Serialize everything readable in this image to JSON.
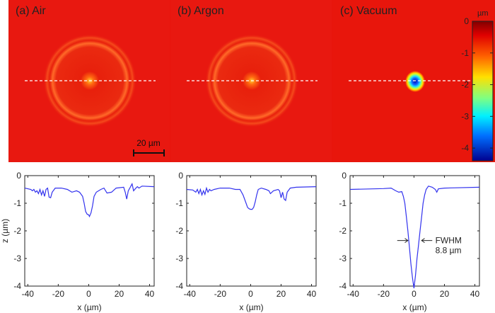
{
  "panels": [
    {
      "label": "(a) Air",
      "scale_bar": "20 µm"
    },
    {
      "label": "(b) Argon"
    },
    {
      "label": "(c) Vacuum"
    }
  ],
  "colorbar": {
    "unit": "µm",
    "ticks": [
      "0",
      "-1",
      "-2",
      "-3",
      "-4"
    ],
    "range": [
      -4.4,
      0
    ],
    "colormap": "jet"
  },
  "colors": {
    "background": "#e8140c",
    "line": "#3333ee",
    "dash": "#ffffff"
  },
  "chart_data": [
    {
      "type": "line",
      "xlabel": "x (µm)",
      "ylabel": "z (µm)",
      "xlim": [
        -42,
        43
      ],
      "ylim": [
        -4,
        0
      ],
      "xticks": [
        "-40",
        "-20",
        "0",
        "20",
        "40"
      ],
      "yticks": [
        "0",
        "-1",
        "-2",
        "-3",
        "-4"
      ],
      "x": [
        -42,
        -38,
        -37,
        -36,
        -35,
        -34,
        -33,
        -32,
        -31,
        -30,
        -29,
        -28,
        -27,
        -26,
        -25,
        -24,
        -22,
        -18,
        -14,
        -11,
        -8,
        -6,
        -4,
        -3,
        -2,
        -1,
        0,
        0.5,
        1.5,
        2.5,
        3.5,
        5,
        8,
        10,
        12,
        15,
        18,
        23,
        24,
        25,
        26,
        27,
        28,
        28.5,
        29.5,
        31,
        32,
        33,
        35,
        43
      ],
      "y": [
        -0.45,
        -0.5,
        -0.55,
        -0.5,
        -0.6,
        -0.55,
        -0.65,
        -0.5,
        -0.7,
        -0.55,
        -0.75,
        -0.5,
        -0.45,
        -0.78,
        -0.8,
        -0.6,
        -0.45,
        -0.45,
        -0.5,
        -0.6,
        -0.55,
        -0.6,
        -0.75,
        -1.0,
        -1.3,
        -1.4,
        -1.42,
        -1.48,
        -1.35,
        -1.1,
        -0.75,
        -0.6,
        -0.5,
        -0.45,
        -0.63,
        -0.6,
        -0.45,
        -0.42,
        -0.6,
        -0.85,
        -0.55,
        -0.45,
        -0.35,
        -0.3,
        -0.55,
        -0.45,
        -0.4,
        -0.45,
        -0.38,
        -0.4
      ]
    },
    {
      "type": "line",
      "xlabel": "x (µm)",
      "xlim": [
        -42,
        43
      ],
      "ylim": [
        -4,
        0
      ],
      "xticks": [
        "-40",
        "-20",
        "0",
        "20",
        "40"
      ],
      "yticks": [
        "0",
        "-1",
        "-2",
        "-3",
        "-4"
      ],
      "x": [
        -42,
        -38,
        -36,
        -35,
        -34,
        -33,
        -32,
        -31,
        -30,
        -29,
        -28,
        -27,
        -26,
        -24,
        -20,
        -14,
        -10,
        -7,
        -5,
        -3,
        -2,
        -1,
        0,
        1,
        2,
        3,
        4,
        5,
        7,
        10,
        12,
        13,
        15,
        18,
        19,
        20,
        21,
        22,
        23,
        24,
        26,
        30,
        43
      ],
      "y": [
        -0.5,
        -0.52,
        -0.6,
        -0.5,
        -0.65,
        -0.5,
        -0.7,
        -0.55,
        -0.68,
        -0.45,
        -0.6,
        -0.5,
        -0.55,
        -0.5,
        -0.45,
        -0.45,
        -0.5,
        -0.5,
        -0.7,
        -1.0,
        -1.15,
        -1.2,
        -1.22,
        -1.22,
        -1.15,
        -0.95,
        -0.7,
        -0.5,
        -0.45,
        -0.5,
        -0.55,
        -0.65,
        -0.55,
        -0.5,
        -0.55,
        -0.8,
        -0.6,
        -0.85,
        -0.9,
        -0.6,
        -0.45,
        -0.42,
        -0.4
      ]
    },
    {
      "type": "line",
      "xlabel": "x (µm)",
      "xlim": [
        -42,
        43
      ],
      "ylim": [
        -4,
        0
      ],
      "xticks": [
        "-40",
        "-20",
        "0",
        "20",
        "40"
      ],
      "yticks": [
        "0",
        "-1",
        "-2",
        "-3",
        "-4"
      ],
      "x": [
        -42,
        -20,
        -15,
        -12,
        -10,
        -8,
        -7,
        -6,
        -5,
        -4,
        -3,
        -2,
        -1,
        0,
        1,
        2,
        3,
        4,
        5,
        6,
        7,
        8,
        9.5,
        12,
        14,
        15,
        16,
        20,
        43
      ],
      "y": [
        -0.5,
        -0.47,
        -0.45,
        -0.55,
        -0.6,
        -0.58,
        -0.75,
        -1.0,
        -1.5,
        -2.0,
        -2.6,
        -3.2,
        -3.7,
        -4.08,
        -3.6,
        -3.0,
        -2.5,
        -2.0,
        -1.5,
        -1.0,
        -0.7,
        -0.5,
        -0.38,
        -0.42,
        -0.5,
        -0.6,
        -0.48,
        -0.45,
        -0.42
      ],
      "annotation": {
        "text1": "FWHM",
        "text2": "8.8 µm",
        "at_z": -2.35
      }
    }
  ]
}
